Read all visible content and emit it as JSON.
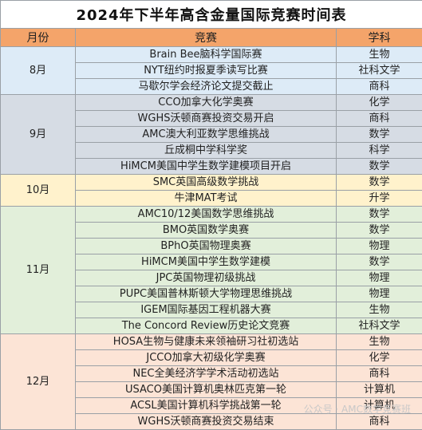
{
  "title": "2024年下半年高含金量国际竞赛时间表",
  "headers": {
    "month": "月份",
    "competition": "竞赛",
    "subject": "学科"
  },
  "groups": [
    {
      "month": "8月",
      "color": "#ddebf7",
      "rows": [
        {
          "name": "Brain Bee脑科学国际赛",
          "subject": "生物"
        },
        {
          "name": "NYT纽约时报夏季读写比赛",
          "subject": "社科文学"
        },
        {
          "name": "马歇尔学会经济论文提交截止",
          "subject": "商科"
        }
      ]
    },
    {
      "month": "9月",
      "color": "#d6dce4",
      "rows": [
        {
          "name": "CCO加拿大化学奥赛",
          "subject": "化学"
        },
        {
          "name": "WGHS沃顿商赛投资交易开启",
          "subject": "商科"
        },
        {
          "name": "AMC澳大利亚数学思维挑战",
          "subject": "数学"
        },
        {
          "name": "丘成桐中学科学奖",
          "subject": "科学"
        },
        {
          "name": "HiMCM美国中学生数学建模项目开启",
          "subject": "数学"
        }
      ]
    },
    {
      "month": "10月",
      "color": "#fff2cc",
      "rows": [
        {
          "name": "SMC英国高级数学挑战",
          "subject": "数学"
        },
        {
          "name": "牛津MAT考试",
          "subject": "升学"
        }
      ]
    },
    {
      "month": "11月",
      "color": "#e2efda",
      "rows": [
        {
          "name": "AMC10/12美国数学思维挑战",
          "subject": "数学"
        },
        {
          "name": "BMO英国数学奥赛",
          "subject": "数学"
        },
        {
          "name": "BPhO英国物理奥赛",
          "subject": "物理"
        },
        {
          "name": "HiMCM美国中学生数学建模",
          "subject": "数学"
        },
        {
          "name": "JPC英国物理初级挑战",
          "subject": "物理"
        },
        {
          "name": "PUPC美国普林斯顿大学物理思维挑战",
          "subject": "物理"
        },
        {
          "name": "IGEM国际基因工程机器大赛",
          "subject": "生物"
        },
        {
          "name": "The Concord Review历史论文竞赛",
          "subject": "社科文学"
        }
      ]
    },
    {
      "month": "12月",
      "color": "#fce4d6",
      "rows": [
        {
          "name": "HOSA生物与健康未来领袖研习社初选站",
          "subject": "生物"
        },
        {
          "name": "JCCO加拿大初级化学奥赛",
          "subject": "化学"
        },
        {
          "name": "NEC全美经济学学术活动初选站",
          "subject": "商科"
        },
        {
          "name": "USACO美国计算机奥林匹克第一轮",
          "subject": "计算机"
        },
        {
          "name": "ACSL美国计算机科学挑战第一轮",
          "subject": "计算机"
        },
        {
          "name": "WGHS沃顿商赛投资交易结束",
          "subject": "商科"
        }
      ]
    }
  ],
  "watermark": "公众号 · AMC数学竞赛班"
}
